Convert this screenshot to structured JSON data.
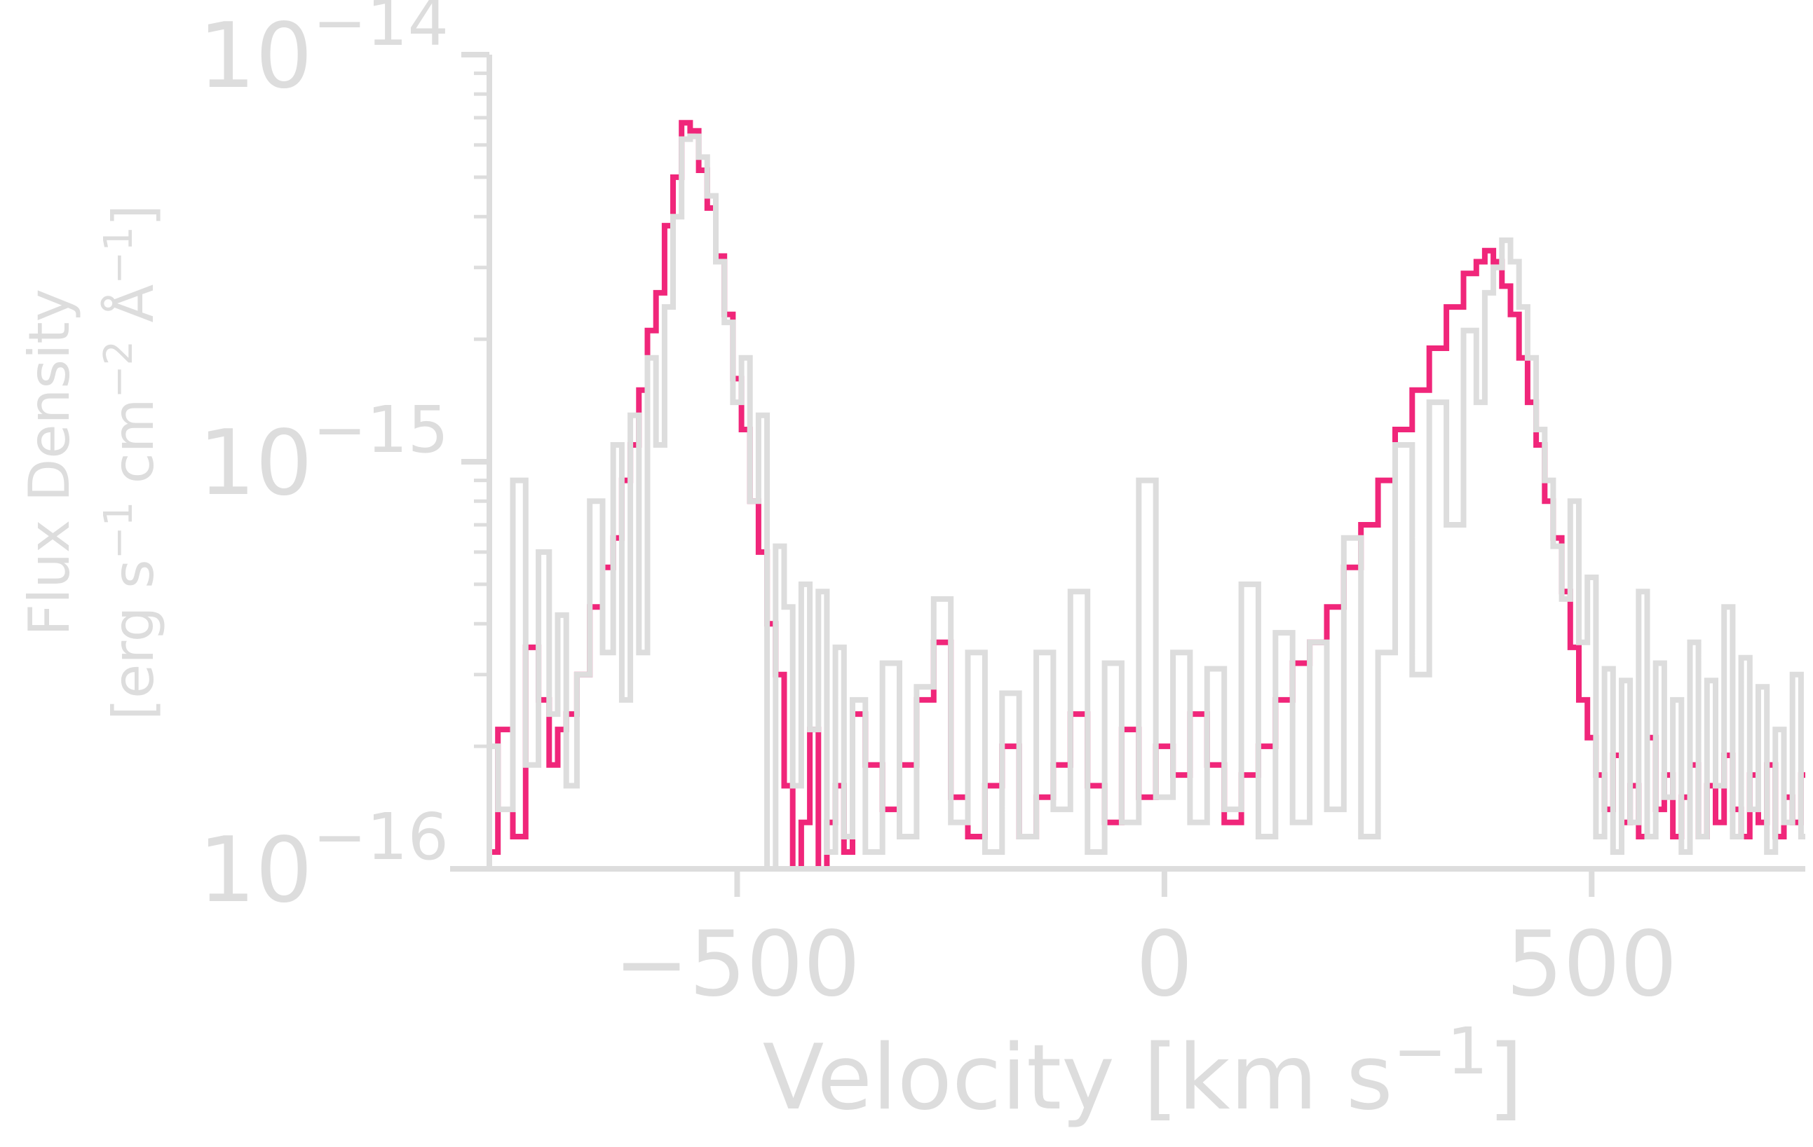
{
  "chart_data": {
    "type": "line",
    "title": "",
    "xlabel": {
      "main": "Velocity [km s",
      "sup": "−1",
      "close": "]"
    },
    "ylabel": {
      "line1": "Flux Density",
      "line2": {
        "a": "[erg s",
        "a_sup": "−1",
        "b": " cm",
        "b_sup": "−2",
        "c": " Å",
        "c_sup": "−1",
        "d": "]"
      }
    },
    "xlim": [
      -790,
      750
    ],
    "ylim": [
      1e-16,
      1e-14
    ],
    "yscale": "log",
    "grid": false,
    "legend": "none",
    "xticks": [
      {
        "value": -500,
        "label": "−500"
      },
      {
        "value": 0,
        "label": "0"
      },
      {
        "value": 500,
        "label": "500"
      }
    ],
    "yticks": [
      {
        "value": 1e-16,
        "base": "10",
        "exp": "−16"
      },
      {
        "value": 1e-15,
        "base": "10",
        "exp": "−15"
      },
      {
        "value": 1e-14,
        "base": "10",
        "exp": "−14"
      }
    ],
    "series": [
      {
        "color": "#f0267a",
        "x": [
          -790,
          -770,
          -755,
          -740,
          -725,
          -715,
          -705,
          -695,
          -680,
          -665,
          -650,
          -640,
          -630,
          -620,
          -610,
          -600,
          -590,
          -580,
          -570,
          -560,
          -550,
          -540,
          -530,
          -520,
          -510,
          -500,
          -490,
          -480,
          -470,
          -460,
          -450,
          -440,
          -430,
          -420,
          -410,
          -400,
          -390,
          -380,
          -370,
          -360,
          -340,
          -320,
          -300,
          -280,
          -260,
          -240,
          -220,
          -200,
          -180,
          -160,
          -140,
          -120,
          -100,
          -80,
          -60,
          -40,
          -20,
          0,
          20,
          40,
          60,
          80,
          100,
          120,
          140,
          160,
          180,
          200,
          220,
          240,
          260,
          280,
          300,
          320,
          340,
          360,
          370,
          380,
          390,
          400,
          410,
          420,
          430,
          440,
          450,
          460,
          470,
          480,
          490,
          500,
          510,
          520,
          530,
          540,
          550,
          560,
          570,
          580,
          590,
          600,
          610,
          620,
          630,
          640,
          650,
          660,
          670,
          680,
          690,
          700,
          710,
          720,
          730,
          740,
          750
        ],
        "y": [
          1.1e-16,
          2.2e-16,
          1.2e-16,
          3.5e-16,
          2.6e-16,
          1.8e-16,
          2.2e-16,
          2.4e-16,
          3e-16,
          4.4e-16,
          5.5e-16,
          6.5e-16,
          9e-16,
          1.1e-15,
          1.5e-15,
          2.1e-15,
          2.6e-15,
          3.8e-15,
          5e-15,
          6.8e-15,
          6.5e-15,
          5.2e-15,
          4.2e-15,
          3.2e-15,
          2.3e-15,
          1.6e-15,
          1.2e-15,
          8e-16,
          6e-16,
          4e-16,
          3e-16,
          1.6e-16,
          1e-16,
          1.3e-16,
          2.2e-16,
          1e-16,
          1.3e-16,
          1.6e-16,
          1.1e-16,
          2.4e-16,
          1.8e-16,
          1.4e-16,
          1.8e-16,
          2.6e-16,
          3.6e-16,
          1.5e-16,
          1.2e-16,
          1.6e-16,
          2e-16,
          1.2e-16,
          1.5e-16,
          1.8e-16,
          2.4e-16,
          1.6e-16,
          1.3e-16,
          2.2e-16,
          1.5e-16,
          2e-16,
          1.7e-16,
          2.4e-16,
          1.8e-16,
          1.3e-16,
          1.7e-16,
          2e-16,
          2.6e-16,
          3.2e-16,
          3.6e-16,
          4.4e-16,
          5.5e-16,
          7e-16,
          9e-16,
          1.2e-15,
          1.5e-15,
          1.9e-15,
          2.4e-15,
          2.9e-15,
          3.1e-15,
          3.3e-15,
          3.1e-15,
          2.7e-15,
          2.3e-15,
          1.8e-15,
          1.4e-15,
          1.1e-15,
          8e-16,
          6.5e-16,
          4.8e-16,
          3.5e-16,
          2.6e-16,
          2.1e-16,
          1.7e-16,
          1.4e-16,
          1.9e-16,
          1.3e-16,
          1.6e-16,
          1.2e-16,
          2.1e-16,
          1.4e-16,
          1.7e-16,
          1.2e-16,
          1.5e-16,
          1.8e-16,
          1.2e-16,
          1.6e-16,
          1.3e-16,
          1.9e-16,
          1.4e-16,
          1.2e-16,
          1.7e-16,
          1.3e-16,
          1.8e-16,
          1.2e-16,
          1.5e-16,
          1.3e-16,
          1.7e-16
        ]
      },
      {
        "color": "#dddddd",
        "x": [
          -790,
          -770,
          -755,
          -740,
          -725,
          -715,
          -705,
          -695,
          -680,
          -665,
          -650,
          -640,
          -630,
          -620,
          -610,
          -600,
          -590,
          -580,
          -570,
          -560,
          -550,
          -540,
          -530,
          -520,
          -510,
          -500,
          -490,
          -480,
          -470,
          -460,
          -450,
          -440,
          -430,
          -420,
          -410,
          -400,
          -390,
          -380,
          -370,
          -360,
          -340,
          -320,
          -300,
          -280,
          -260,
          -240,
          -220,
          -200,
          -180,
          -160,
          -140,
          -120,
          -100,
          -80,
          -60,
          -40,
          -20,
          0,
          20,
          40,
          60,
          80,
          100,
          120,
          140,
          160,
          180,
          200,
          220,
          240,
          260,
          280,
          300,
          320,
          340,
          360,
          370,
          380,
          390,
          400,
          410,
          420,
          430,
          440,
          450,
          460,
          470,
          480,
          490,
          500,
          510,
          520,
          530,
          540,
          550,
          560,
          570,
          580,
          590,
          600,
          610,
          620,
          630,
          640,
          650,
          660,
          670,
          680,
          690,
          700,
          710,
          720,
          730,
          740,
          750
        ],
        "y": [
          2e-16,
          1.4e-16,
          9e-16,
          1.8e-16,
          6e-16,
          2.4e-16,
          4.2e-16,
          1.6e-16,
          3e-16,
          8e-16,
          3.4e-16,
          1.1e-15,
          2.6e-16,
          1.3e-15,
          3.4e-16,
          1.8e-15,
          1.1e-15,
          2.4e-15,
          4e-15,
          6.2e-15,
          6.3e-15,
          5.6e-15,
          4.5e-15,
          3.1e-15,
          2.2e-15,
          1.4e-15,
          1.8e-15,
          8e-16,
          1.3e-15,
          1e-16,
          6.2e-16,
          4.4e-16,
          1.6e-16,
          5e-16,
          2.2e-16,
          4.8e-16,
          1.1e-16,
          3.5e-16,
          1.2e-16,
          2.6e-16,
          1.1e-16,
          3.2e-16,
          1.2e-16,
          2.8e-16,
          4.6e-16,
          1.3e-16,
          3.4e-16,
          1.1e-16,
          2.7e-16,
          1.2e-16,
          3.4e-16,
          1.4e-16,
          4.8e-16,
          1.1e-16,
          3.2e-16,
          1.3e-16,
          9e-16,
          1.5e-16,
          3.4e-16,
          1.3e-16,
          3.1e-16,
          1.4e-16,
          5e-16,
          1.2e-16,
          3.8e-16,
          1.3e-16,
          3.6e-16,
          1.4e-16,
          6.5e-16,
          1.2e-16,
          3.4e-16,
          1.1e-15,
          3e-16,
          1.4e-15,
          7e-16,
          2.1e-15,
          1.4e-15,
          2.6e-15,
          3e-15,
          3.5e-15,
          3.1e-15,
          2.4e-15,
          1.8e-15,
          1.2e-15,
          9e-16,
          6.2e-16,
          4.6e-16,
          8e-16,
          3.6e-16,
          5.2e-16,
          1.2e-16,
          3.1e-16,
          1.1e-16,
          2.9e-16,
          1.3e-16,
          4.8e-16,
          1.2e-16,
          3.2e-16,
          1.5e-16,
          2.6e-16,
          1.1e-16,
          3.6e-16,
          1.2e-16,
          2.9e-16,
          1.6e-16,
          4.4e-16,
          1.2e-16,
          3.3e-16,
          1.4e-16,
          2.8e-16,
          1.1e-16,
          2.2e-16,
          1.3e-16,
          3e-16,
          1.2e-16
        ]
      }
    ]
  }
}
